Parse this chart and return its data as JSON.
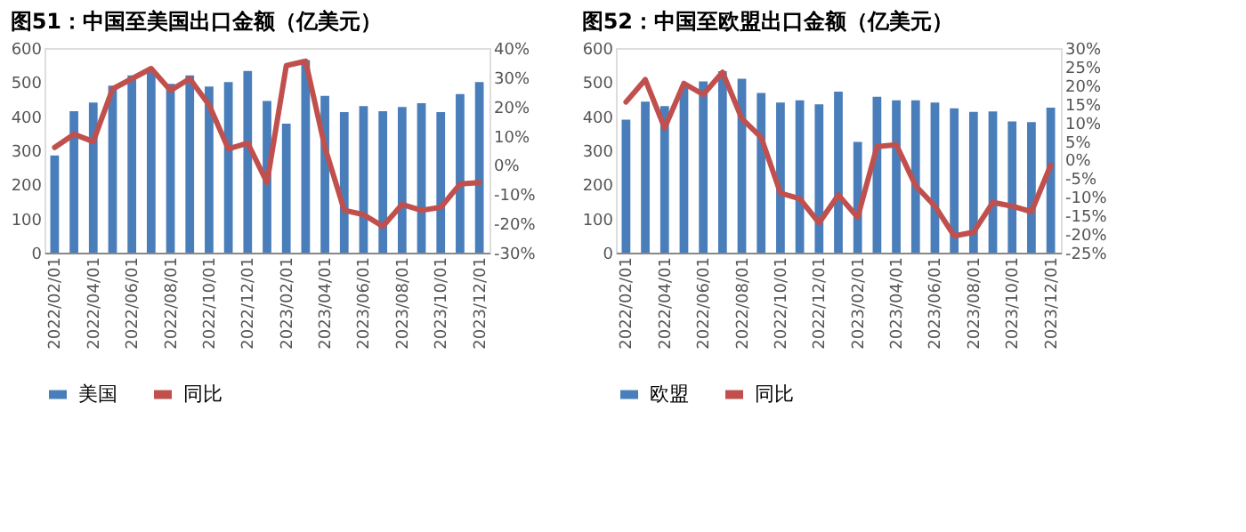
{
  "chart_data": [
    {
      "type": "bar",
      "title": "图51：中国至美国出口金额（亿美元）",
      "categories": [
        "2022/02/01",
        null,
        "2022/04/01",
        null,
        "2022/06/01",
        null,
        "2022/08/01",
        null,
        "2022/10/01",
        null,
        "2022/12/01",
        null,
        "2023/02/01",
        null,
        "2023/04/01",
        null,
        "2023/06/01",
        null,
        "2023/08/01",
        null,
        "2023/10/01",
        null,
        "2023/12/01"
      ],
      "series": [
        {
          "name": "美国",
          "color": "#4a7ebb",
          "values": [
            285,
            415,
            440,
            490,
            520,
            530,
            495,
            520,
            487,
            500,
            533,
            445,
            378,
            565,
            460,
            412,
            430,
            415,
            427,
            438,
            412,
            465,
            500
          ]
        },
        {
          "name": "同比",
          "type": "line",
          "axis": "y2",
          "color": "#c0504d",
          "values": [
            6,
            10.5,
            8,
            26,
            29.5,
            33,
            25.5,
            29.5,
            20.5,
            5.5,
            7.5,
            -6,
            34,
            35.5,
            6,
            -15.5,
            -17,
            -21,
            -13.5,
            -15.5,
            -14.5,
            -6.5,
            -6
          ]
        }
      ],
      "ylim": [
        0,
        600
      ],
      "yticks": [
        0,
        100,
        200,
        300,
        400,
        500,
        600
      ],
      "y2lim": [
        -30,
        40
      ],
      "y2ticks": [
        {
          "value": -30,
          "label": "-30%"
        },
        {
          "value": -20,
          "label": "-20%"
        },
        {
          "value": -10,
          "label": "-10%"
        },
        {
          "value": 0,
          "label": "0%"
        },
        {
          "value": 10,
          "label": "10%"
        },
        {
          "value": 20,
          "label": "20%"
        },
        {
          "value": 30,
          "label": "30%"
        },
        {
          "value": 40,
          "label": "40%"
        }
      ],
      "legend": "bottom"
    },
    {
      "type": "bar",
      "title": "图52：中国至欧盟出口金额（亿美元）",
      "categories": [
        "2022/02/01",
        null,
        "2022/04/01",
        null,
        "2022/06/01",
        null,
        "2022/08/01",
        null,
        "2022/10/01",
        null,
        "2022/12/01",
        null,
        "2023/02/01",
        null,
        "2023/04/01",
        null,
        "2023/06/01",
        null,
        "2023/08/01",
        null,
        "2023/10/01",
        null,
        "2023/12/01"
      ],
      "series": [
        {
          "name": "欧盟",
          "color": "#4a7ebb",
          "values": [
            390,
            443,
            430,
            485,
            502,
            532,
            510,
            468,
            440,
            447,
            435,
            472,
            325,
            457,
            447,
            447,
            440,
            423,
            413,
            414,
            385,
            383,
            425
          ]
        },
        {
          "name": "同比",
          "type": "line",
          "axis": "y2",
          "color": "#c0504d",
          "values": [
            15.5,
            21.5,
            8.5,
            20.5,
            17.5,
            23.5,
            11,
            6,
            -9,
            -10.5,
            -17,
            -9.5,
            -15.5,
            3.5,
            4,
            -7,
            -12.5,
            -20.5,
            -19.5,
            -11.5,
            -12.5,
            -14,
            -1.5
          ]
        }
      ],
      "ylim": [
        0,
        600
      ],
      "yticks": [
        0,
        100,
        200,
        300,
        400,
        500,
        600
      ],
      "y2lim": [
        -25,
        30
      ],
      "y2ticks": [
        {
          "value": -25,
          "label": "-25%"
        },
        {
          "value": -20,
          "label": "-20%"
        },
        {
          "value": -15,
          "label": "-15%"
        },
        {
          "value": -10,
          "label": "-10%"
        },
        {
          "value": -5,
          "label": "-5%"
        },
        {
          "value": 0,
          "label": "0%"
        },
        {
          "value": 5,
          "label": "5%"
        },
        {
          "value": 10,
          "label": "10%"
        },
        {
          "value": 15,
          "label": "15%"
        },
        {
          "value": 20,
          "label": "20%"
        },
        {
          "value": 25,
          "label": "25%"
        },
        {
          "value": 30,
          "label": "30%"
        }
      ],
      "legend": "bottom"
    }
  ]
}
